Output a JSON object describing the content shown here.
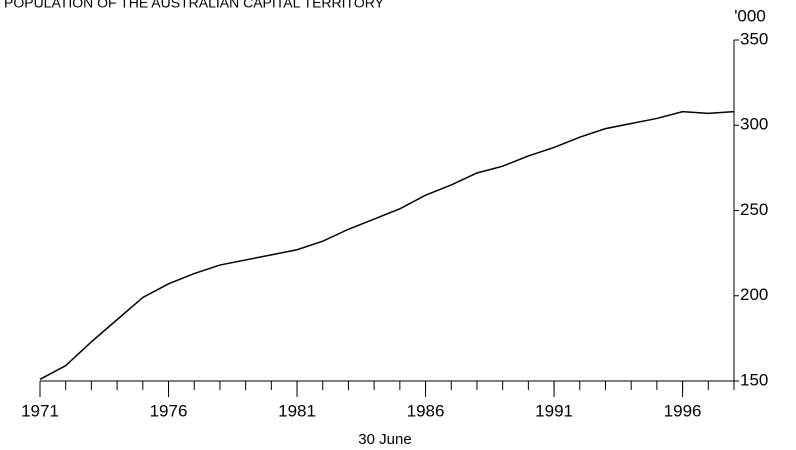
{
  "chart_data": {
    "type": "line",
    "title": "POPULATION OF THE AUSTRALIAN CAPITAL TERRITORY",
    "x_label": "30 June",
    "y_label": "'000",
    "x": [
      1971,
      1972,
      1973,
      1974,
      1975,
      1976,
      1977,
      1978,
      1979,
      1980,
      1981,
      1982,
      1983,
      1984,
      1985,
      1986,
      1987,
      1988,
      1989,
      1990,
      1991,
      1992,
      1993,
      1994,
      1995,
      1996,
      1997,
      1998
    ],
    "series": [
      {
        "name": "Population",
        "color": "#000000",
        "values": [
          151,
          159,
          173,
          186,
          199,
          207,
          213,
          218,
          221,
          224,
          227,
          232,
          239,
          245,
          251,
          259,
          265,
          272,
          276,
          282,
          287,
          293,
          298,
          301,
          304,
          308,
          307,
          308
        ]
      }
    ],
    "xlim": [
      1971,
      1998
    ],
    "xticks": [
      1971,
      1976,
      1981,
      1986,
      1991,
      1996
    ],
    "ylim": [
      150,
      350
    ],
    "yticks": [
      150,
      200,
      250,
      300,
      350
    ],
    "y_axis_side": "right",
    "grid": false
  }
}
